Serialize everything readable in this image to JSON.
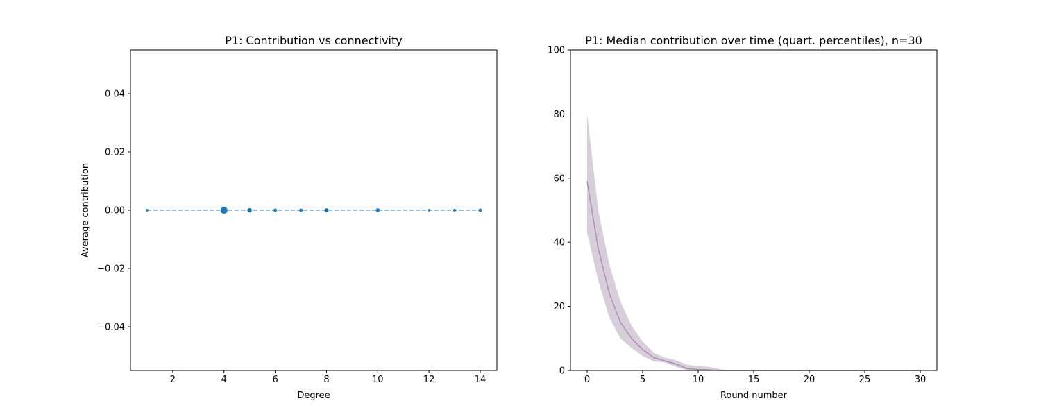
{
  "chart_data": [
    {
      "type": "scatter",
      "title": "P1: Contribution vs connectivity",
      "xlabel": "Degree",
      "ylabel": "Average contribution",
      "xlim": [
        0.35,
        14.65
      ],
      "ylim": [
        -0.055,
        0.055
      ],
      "xticks": [
        2,
        4,
        6,
        8,
        10,
        12,
        14
      ],
      "xtick_labels": [
        "2",
        "4",
        "6",
        "8",
        "10",
        "12",
        "14"
      ],
      "yticks": [
        -0.04,
        -0.02,
        0.0,
        0.02,
        0.04
      ],
      "ytick_labels": [
        "−0.04",
        "−0.02",
        "0.00",
        "0.02",
        "0.04"
      ],
      "color": "#1f77b4",
      "line_style": "dashed",
      "points": [
        {
          "x": 1,
          "y": 0.0,
          "size": 1
        },
        {
          "x": 4,
          "y": 0.0,
          "size": 6
        },
        {
          "x": 5,
          "y": 0.0,
          "size": 3
        },
        {
          "x": 6,
          "y": 0.0,
          "size": 2
        },
        {
          "x": 7,
          "y": 0.0,
          "size": 2
        },
        {
          "x": 8,
          "y": 0.0,
          "size": 2.5
        },
        {
          "x": 10,
          "y": 0.0,
          "size": 2.5
        },
        {
          "x": 12,
          "y": 0.0,
          "size": 1
        },
        {
          "x": 13,
          "y": 0.0,
          "size": 1.5
        },
        {
          "x": 14,
          "y": 0.0,
          "size": 2
        }
      ]
    },
    {
      "type": "line",
      "title": "P1: Median contribution over time (quart. percentiles), n=30",
      "xlabel": "Round number",
      "ylabel": "",
      "xlim": [
        -1.5,
        31.5
      ],
      "ylim": [
        0,
        100
      ],
      "xticks": [
        0,
        5,
        10,
        15,
        20,
        25,
        30
      ],
      "xtick_labels": [
        "0",
        "5",
        "10",
        "15",
        "20",
        "25",
        "30"
      ],
      "yticks": [
        0,
        20,
        40,
        60,
        80,
        100
      ],
      "ytick_labels": [
        "0",
        "20",
        "40",
        "60",
        "80",
        "100"
      ],
      "color": "#b8a6bd",
      "x": [
        0,
        1,
        2,
        3,
        4,
        5,
        6,
        7,
        8,
        9,
        10,
        11,
        12,
        13,
        14,
        15,
        16,
        17,
        18,
        19,
        20,
        21,
        22,
        23,
        24,
        25,
        26,
        27,
        28,
        29,
        30
      ],
      "median": [
        59,
        38,
        24,
        15,
        10,
        6.5,
        4,
        3,
        2,
        0.6,
        0.3,
        0.2,
        0,
        0,
        0,
        0,
        0,
        0,
        0,
        0,
        0,
        0,
        0,
        0,
        0,
        0,
        0,
        0,
        0,
        0,
        0
      ],
      "q1": [
        43,
        28,
        16.5,
        10,
        7,
        4.5,
        2.8,
        2.5,
        1.2,
        0,
        0,
        0,
        0,
        0,
        0,
        0,
        0,
        0,
        0,
        0,
        0,
        0,
        0,
        0,
        0,
        0,
        0,
        0,
        0,
        0,
        0
      ],
      "q3": [
        80,
        50,
        33,
        21.5,
        14,
        9,
        5.5,
        4,
        3.2,
        1.8,
        1.4,
        1.1,
        0.4,
        0,
        0,
        0,
        0,
        0,
        0,
        0,
        0,
        0,
        0,
        0,
        0,
        0,
        0,
        0,
        0,
        0,
        0
      ]
    }
  ]
}
